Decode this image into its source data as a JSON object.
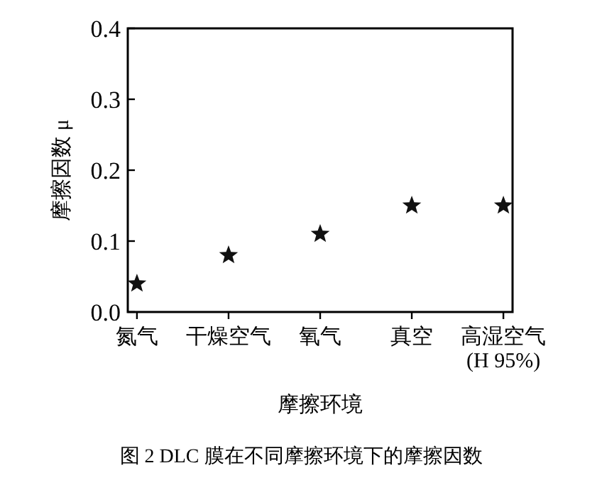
{
  "chart_data": {
    "type": "scatter",
    "categories": [
      "氮气",
      "干燥空气",
      "氧气",
      "真空",
      "高湿空气\n(H 95%)"
    ],
    "series": [
      {
        "color": "#111111",
        "values": [
          0.04,
          0.08,
          0.11,
          0.15,
          0.15
        ]
      }
    ],
    "ylim": [
      0,
      0.4
    ],
    "yticks": [
      {
        "value": 0,
        "label": "0.0"
      },
      0.1,
      0.2,
      0.3,
      0.4
    ],
    "ylabel": "摩擦因数 μ",
    "xlabel": "摩擦环境",
    "annotations": [
      "图 2   DLC 膜在不同摩擦环境下的摩擦因数"
    ],
    "marker": "star",
    "grid": false
  }
}
